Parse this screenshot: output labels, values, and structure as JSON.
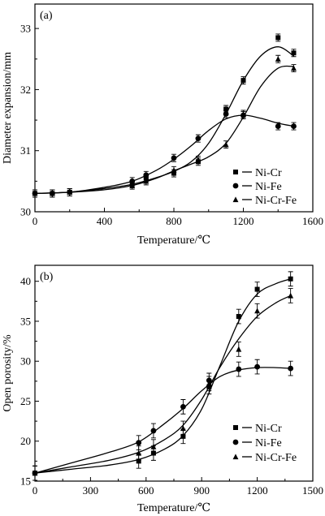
{
  "chart_data": [
    {
      "type": "line",
      "panel_label": "(a)",
      "xlabel": "Temperature/℃",
      "ylabel": "Diameter expansion/mm",
      "xlim": [
        0,
        1600
      ],
      "ylim": [
        30,
        33.4
      ],
      "xticks": [
        0,
        400,
        800,
        1200,
        1600
      ],
      "yticks": [
        30,
        31,
        32,
        33
      ],
      "grid": false,
      "legend_position": "center-right",
      "series": [
        {
          "name": "Ni-Cr",
          "marker": "square",
          "x": [
            0,
            100,
            200,
            560,
            640,
            800,
            940,
            1100,
            1200,
            1400,
            1490
          ],
          "y": [
            30.3,
            30.3,
            30.32,
            30.45,
            30.55,
            30.63,
            30.82,
            31.68,
            32.15,
            32.85,
            32.6
          ]
        },
        {
          "name": "Ni-Fe",
          "marker": "circle",
          "x": [
            0,
            100,
            200,
            560,
            640,
            800,
            940,
            1100,
            1200,
            1400,
            1490
          ],
          "y": [
            30.3,
            30.3,
            30.32,
            30.5,
            30.6,
            30.88,
            31.2,
            31.6,
            31.58,
            31.4,
            31.4
          ]
        },
        {
          "name": "Ni-Cr-Fe",
          "marker": "triangle",
          "x": [
            0,
            100,
            200,
            560,
            640,
            800,
            940,
            1100,
            1200,
            1400,
            1490
          ],
          "y": [
            30.3,
            30.3,
            30.32,
            30.43,
            30.5,
            30.68,
            30.85,
            31.1,
            31.6,
            32.5,
            32.35
          ]
        }
      ],
      "fit_curves": [
        {
          "name": "Ni-Cr",
          "x": [
            0,
            200,
            400,
            560,
            700,
            800,
            900,
            1000,
            1100,
            1200,
            1300,
            1400,
            1490
          ],
          "y": [
            30.3,
            30.32,
            30.38,
            30.45,
            30.56,
            30.66,
            30.82,
            31.12,
            31.6,
            32.15,
            32.55,
            32.7,
            32.55
          ]
        },
        {
          "name": "Ni-Fe",
          "x": [
            0,
            200,
            400,
            560,
            700,
            800,
            900,
            1000,
            1100,
            1200,
            1300,
            1400,
            1490
          ],
          "y": [
            30.3,
            30.32,
            30.4,
            30.5,
            30.68,
            30.86,
            31.08,
            31.33,
            31.52,
            31.58,
            31.53,
            31.45,
            31.4
          ]
        },
        {
          "name": "Ni-Cr-Fe",
          "x": [
            0,
            200,
            400,
            560,
            700,
            800,
            900,
            1000,
            1100,
            1200,
            1300,
            1400,
            1490
          ],
          "y": [
            30.3,
            30.32,
            30.36,
            30.43,
            30.55,
            30.67,
            30.78,
            30.9,
            31.12,
            31.55,
            32.05,
            32.35,
            32.38
          ]
        }
      ]
    },
    {
      "type": "line",
      "panel_label": "(b)",
      "xlabel": "Temperature/℃",
      "ylabel": "Open porosity/%",
      "xlim": [
        0,
        1500
      ],
      "ylim": [
        15,
        42
      ],
      "xticks": [
        0,
        300,
        600,
        900,
        1200,
        1500
      ],
      "yticks": [
        15,
        20,
        25,
        30,
        35,
        40
      ],
      "grid": false,
      "legend_position": "bottom-right",
      "series": [
        {
          "name": "Ni-Cr",
          "marker": "square",
          "x": [
            0,
            560,
            640,
            800,
            940,
            1100,
            1200,
            1380
          ],
          "y": [
            16,
            17.5,
            18.5,
            20.6,
            26.8,
            35.6,
            39,
            40.3
          ]
        },
        {
          "name": "Ni-Fe",
          "marker": "circle",
          "x": [
            0,
            560,
            640,
            800,
            940,
            1100,
            1200,
            1380
          ],
          "y": [
            16,
            19.8,
            21.3,
            24.3,
            27.6,
            29,
            29.3,
            29.1
          ]
        },
        {
          "name": "Ni-Cr-Fe",
          "marker": "triangle",
          "x": [
            0,
            560,
            640,
            800,
            940,
            1100,
            1200,
            1380
          ],
          "y": [
            16,
            18.5,
            19.3,
            21.6,
            27.2,
            31.5,
            36.3,
            38.2
          ]
        }
      ],
      "fit_curves": [
        {
          "name": "Ni-Cr",
          "x": [
            0,
            200,
            400,
            560,
            700,
            800,
            900,
            1000,
            1100,
            1200,
            1300,
            1380
          ],
          "y": [
            16,
            16.5,
            17,
            17.7,
            19,
            20.7,
            24,
            29.5,
            35,
            38.4,
            39.7,
            40.3
          ]
        },
        {
          "name": "Ni-Fe",
          "x": [
            0,
            200,
            400,
            560,
            700,
            800,
            900,
            1000,
            1100,
            1200,
            1300,
            1380
          ],
          "y": [
            16,
            17.3,
            18.6,
            19.9,
            22.2,
            24.1,
            26.3,
            28.1,
            28.9,
            29.2,
            29.2,
            29.1
          ]
        },
        {
          "name": "Ni-Cr-Fe",
          "x": [
            0,
            200,
            400,
            560,
            700,
            800,
            900,
            1000,
            1100,
            1200,
            1300,
            1380
          ],
          "y": [
            16,
            16.8,
            17.6,
            18.6,
            20.2,
            22,
            25.2,
            29.3,
            32.8,
            35.6,
            37.3,
            38.2
          ]
        }
      ]
    }
  ]
}
